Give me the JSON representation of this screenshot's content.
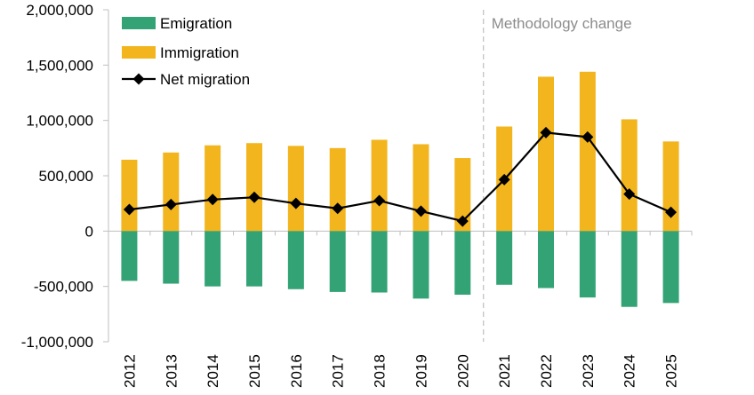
{
  "chart_data": {
    "type": "bar",
    "categories": [
      "2012",
      "2013",
      "2014",
      "2015",
      "2016",
      "2017",
      "2018",
      "2019",
      "2020",
      "2021",
      "2022",
      "2023",
      "2024",
      "2025"
    ],
    "series": [
      {
        "name": "Emigration",
        "type": "bar",
        "color": "#33a375",
        "values": [
          -450000,
          -475000,
          -500000,
          -500000,
          -525000,
          -550000,
          -555000,
          -610000,
          -575000,
          -485000,
          -515000,
          -600000,
          -685000,
          -650000
        ]
      },
      {
        "name": "Immigration",
        "type": "bar",
        "color": "#f2b51e",
        "values": [
          645000,
          710000,
          775000,
          795000,
          770000,
          750000,
          825000,
          785000,
          660000,
          945000,
          1395000,
          1440000,
          1010000,
          810000
        ]
      },
      {
        "name": "Net migration",
        "type": "line",
        "color": "#000000",
        "marker": "diamond",
        "values": [
          195000,
          240000,
          285000,
          305000,
          250000,
          205000,
          275000,
          180000,
          90000,
          465000,
          890000,
          850000,
          335000,
          170000
        ]
      }
    ],
    "yticks": [
      "2,000,000",
      "1,500,000",
      "1,000,000",
      "500,000",
      "0",
      "-500,000",
      "-1,000,000"
    ],
    "ylim": [
      -1000000,
      2000000
    ],
    "annotation": "Methodology change",
    "legend_position": "top-left",
    "grid": false
  }
}
